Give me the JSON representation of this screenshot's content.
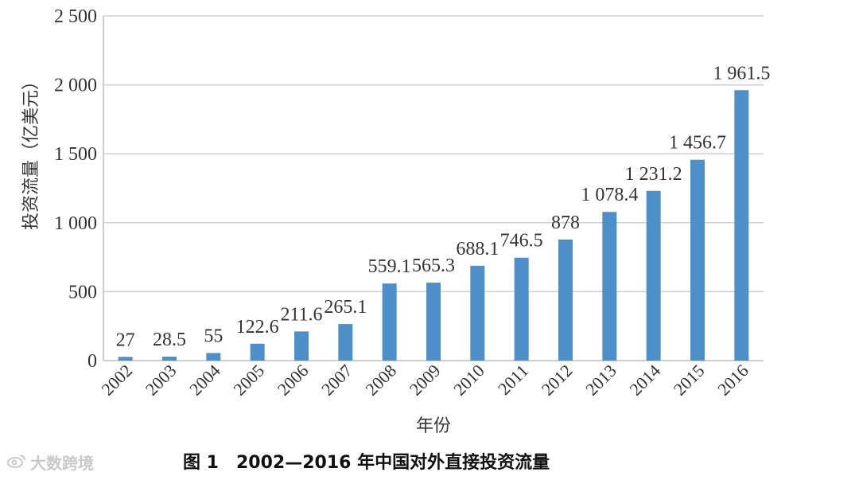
{
  "chart_data": {
    "type": "bar",
    "categories": [
      "2002",
      "2003",
      "2004",
      "2005",
      "2006",
      "2007",
      "2008",
      "2009",
      "2010",
      "2011",
      "2012",
      "2013",
      "2014",
      "2015",
      "2016"
    ],
    "values": [
      27,
      28.5,
      55,
      122.6,
      211.6,
      265.1,
      559.1,
      565.3,
      688.1,
      746.5,
      878,
      1078.4,
      1231.2,
      1456.7,
      1961.5
    ],
    "value_labels": [
      "27",
      "28.5",
      "55",
      "122.6",
      "211.6",
      "265.1",
      "559.1",
      "565.3",
      "688.1",
      "746.5",
      "878",
      "1 078.4",
      "1 231.2",
      "1 456.7",
      "1 961.5"
    ],
    "ylim": [
      0,
      2500
    ],
    "yticks": [
      0,
      500,
      1000,
      1500,
      2000,
      2500
    ],
    "ytick_labels": [
      "0",
      "500",
      "1 000",
      "1 500",
      "2 000",
      "2 500"
    ],
    "xlabel": "年份",
    "ylabel": "投资流量（亿美元）",
    "grid": true,
    "bar_color": "#4d8fc9"
  },
  "caption": "图 1　2002—2016 年中国对外直接投资流量",
  "watermark": {
    "icon": "weibo-logo",
    "text": "大数跨境"
  }
}
